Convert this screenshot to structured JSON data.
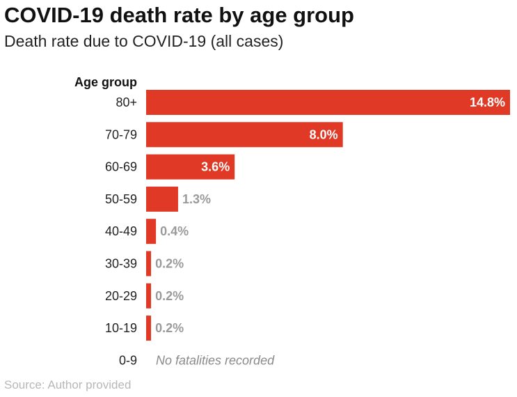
{
  "chart_data": {
    "type": "bar",
    "orientation": "horizontal",
    "title": "COVID-19 death rate by age group",
    "subtitle": "Death rate due to COVID-19 (all cases)",
    "ylabel": "Age group",
    "xlabel": "",
    "categories": [
      "80+",
      "70-79",
      "60-69",
      "50-59",
      "40-49",
      "30-39",
      "20-29",
      "10-19",
      "0-9"
    ],
    "values": [
      14.8,
      8.0,
      3.6,
      1.3,
      0.4,
      0.2,
      0.2,
      0.2,
      null
    ],
    "value_labels": [
      "14.8%",
      "8.0%",
      "3.6%",
      "1.3%",
      "0.4%",
      "0.2%",
      "0.2%",
      "0.2%",
      ""
    ],
    "annotations": [
      {
        "category": "0-9",
        "text": "No fatalities recorded"
      }
    ],
    "xlim": [
      0,
      14.8
    ],
    "grid": false,
    "bar_color": "#e03a26",
    "source": "Source: Author provided"
  }
}
